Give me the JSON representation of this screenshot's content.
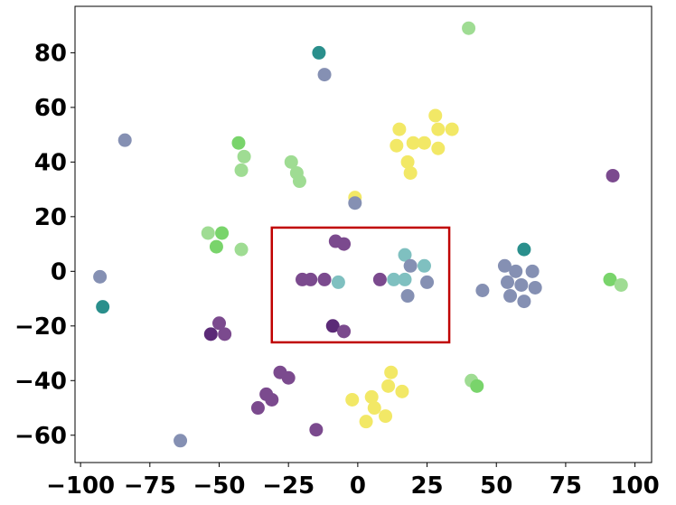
{
  "chart_data": {
    "type": "scatter",
    "title": "",
    "xlabel": "",
    "ylabel": "",
    "xlim": [
      -102,
      106
    ],
    "ylim": [
      -70,
      97
    ],
    "xticks": [
      -100,
      -75,
      -50,
      -25,
      0,
      25,
      50,
      75,
      100
    ],
    "xtick_labels": [
      "−100",
      "−75",
      "−50",
      "−25",
      "0",
      "25",
      "50",
      "75",
      "100"
    ],
    "yticks": [
      -60,
      -40,
      -20,
      0,
      20,
      40,
      60,
      80
    ],
    "ytick_labels": [
      "−60",
      "−40",
      "−20",
      "0",
      "20",
      "40",
      "60",
      "80"
    ],
    "grid": false,
    "colors": {
      "dark_purple": "#5b2a77",
      "purple": "#7b4a8e",
      "slate": "#8590b3",
      "teal_dark": "#2a8f8c",
      "teal": "#7fc0c0",
      "green": "#79d46b",
      "light_green": "#9fdc93",
      "yellow": "#f2e866",
      "highlight": "#c00000"
    },
    "points": [
      {
        "x": 40,
        "y": 89,
        "c": "light_green"
      },
      {
        "x": -14,
        "y": 80,
        "c": "teal_dark"
      },
      {
        "x": -12,
        "y": 72,
        "c": "slate"
      },
      {
        "x": -84,
        "y": 48,
        "c": "slate"
      },
      {
        "x": -93,
        "y": -2,
        "c": "slate"
      },
      {
        "x": -92,
        "y": -13,
        "c": "teal_dark"
      },
      {
        "x": -64,
        "y": -62,
        "c": "slate"
      },
      {
        "x": -43,
        "y": 47,
        "c": "green"
      },
      {
        "x": -41,
        "y": 42,
        "c": "light_green"
      },
      {
        "x": -42,
        "y": 37,
        "c": "light_green"
      },
      {
        "x": -24,
        "y": 40,
        "c": "light_green"
      },
      {
        "x": -22,
        "y": 36,
        "c": "light_green"
      },
      {
        "x": -21,
        "y": 33,
        "c": "light_green"
      },
      {
        "x": -54,
        "y": 14,
        "c": "light_green"
      },
      {
        "x": -49,
        "y": 14,
        "c": "green"
      },
      {
        "x": -51,
        "y": 9,
        "c": "green"
      },
      {
        "x": -42,
        "y": 8,
        "c": "light_green"
      },
      {
        "x": -1,
        "y": 27,
        "c": "yellow"
      },
      {
        "x": -1,
        "y": 25,
        "c": "slate"
      },
      {
        "x": 15,
        "y": 52,
        "c": "yellow"
      },
      {
        "x": 28,
        "y": 57,
        "c": "yellow"
      },
      {
        "x": 29,
        "y": 52,
        "c": "yellow"
      },
      {
        "x": 34,
        "y": 52,
        "c": "yellow"
      },
      {
        "x": 14,
        "y": 46,
        "c": "yellow"
      },
      {
        "x": 20,
        "y": 47,
        "c": "yellow"
      },
      {
        "x": 24,
        "y": 47,
        "c": "yellow"
      },
      {
        "x": 29,
        "y": 45,
        "c": "yellow"
      },
      {
        "x": 18,
        "y": 40,
        "c": "yellow"
      },
      {
        "x": 19,
        "y": 36,
        "c": "yellow"
      },
      {
        "x": 92,
        "y": 35,
        "c": "purple"
      },
      {
        "x": -8,
        "y": 11,
        "c": "purple"
      },
      {
        "x": -5,
        "y": 10,
        "c": "purple"
      },
      {
        "x": -20,
        "y": -3,
        "c": "purple"
      },
      {
        "x": -17,
        "y": -3,
        "c": "purple"
      },
      {
        "x": -12,
        "y": -3,
        "c": "purple"
      },
      {
        "x": -7,
        "y": -4,
        "c": "teal"
      },
      {
        "x": 8,
        "y": -3,
        "c": "purple"
      },
      {
        "x": 17,
        "y": 6,
        "c": "teal"
      },
      {
        "x": 19,
        "y": 2,
        "c": "slate"
      },
      {
        "x": 24,
        "y": 2,
        "c": "teal"
      },
      {
        "x": 13,
        "y": -3,
        "c": "teal"
      },
      {
        "x": 17,
        "y": -3,
        "c": "teal"
      },
      {
        "x": 25,
        "y": -4,
        "c": "slate"
      },
      {
        "x": 18,
        "y": -9,
        "c": "slate"
      },
      {
        "x": -9,
        "y": -20,
        "c": "dark_purple"
      },
      {
        "x": -5,
        "y": -22,
        "c": "purple"
      },
      {
        "x": 60,
        "y": 8,
        "c": "teal_dark"
      },
      {
        "x": 53,
        "y": 2,
        "c": "slate"
      },
      {
        "x": 57,
        "y": 0,
        "c": "slate"
      },
      {
        "x": 63,
        "y": 0,
        "c": "slate"
      },
      {
        "x": 54,
        "y": -4,
        "c": "slate"
      },
      {
        "x": 59,
        "y": -5,
        "c": "slate"
      },
      {
        "x": 64,
        "y": -6,
        "c": "slate"
      },
      {
        "x": 45,
        "y": -7,
        "c": "slate"
      },
      {
        "x": 55,
        "y": -9,
        "c": "slate"
      },
      {
        "x": 60,
        "y": -11,
        "c": "slate"
      },
      {
        "x": 91,
        "y": -3,
        "c": "green"
      },
      {
        "x": 95,
        "y": -5,
        "c": "light_green"
      },
      {
        "x": -50,
        "y": -19,
        "c": "purple"
      },
      {
        "x": -53,
        "y": -23,
        "c": "dark_purple"
      },
      {
        "x": -48,
        "y": -23,
        "c": "purple"
      },
      {
        "x": -28,
        "y": -37,
        "c": "purple"
      },
      {
        "x": -25,
        "y": -39,
        "c": "purple"
      },
      {
        "x": -33,
        "y": -45,
        "c": "purple"
      },
      {
        "x": -31,
        "y": -47,
        "c": "purple"
      },
      {
        "x": -36,
        "y": -50,
        "c": "purple"
      },
      {
        "x": -15,
        "y": -58,
        "c": "purple"
      },
      {
        "x": 12,
        "y": -37,
        "c": "yellow"
      },
      {
        "x": 11,
        "y": -42,
        "c": "yellow"
      },
      {
        "x": 16,
        "y": -44,
        "c": "yellow"
      },
      {
        "x": -2,
        "y": -47,
        "c": "yellow"
      },
      {
        "x": 5,
        "y": -46,
        "c": "yellow"
      },
      {
        "x": 6,
        "y": -50,
        "c": "yellow"
      },
      {
        "x": 10,
        "y": -53,
        "c": "yellow"
      },
      {
        "x": 3,
        "y": -55,
        "c": "yellow"
      },
      {
        "x": 41,
        "y": -40,
        "c": "light_green"
      },
      {
        "x": 43,
        "y": -42,
        "c": "green"
      }
    ],
    "highlight_box": {
      "x0": -31,
      "x1": 33,
      "y0": -26,
      "y1": 16
    }
  }
}
